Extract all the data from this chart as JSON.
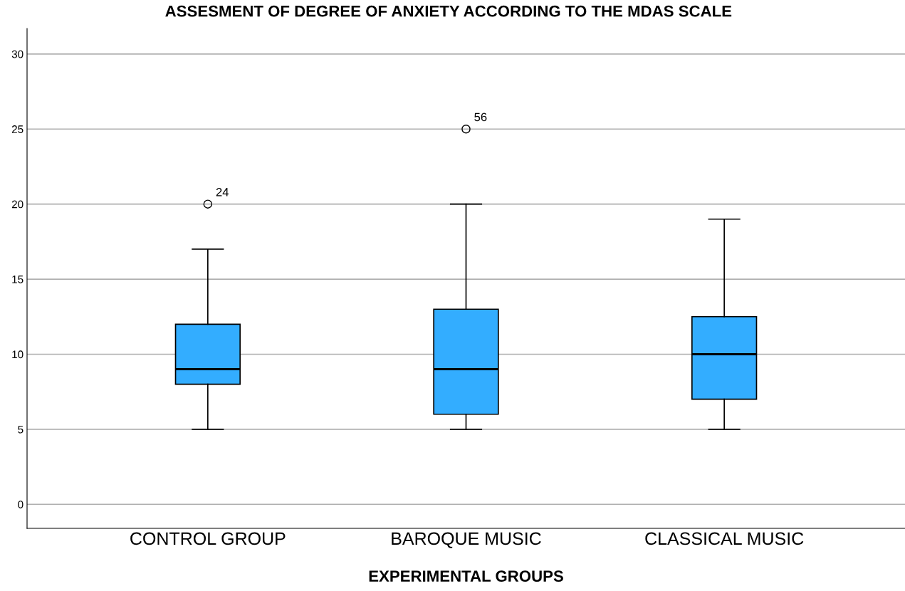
{
  "chart_data": {
    "type": "box",
    "title": "ASSESMENT OF DEGREE OF ANXIETY ACCORDING TO THE MDAS SCALE",
    "xlabel": "EXPERIMENTAL GROUPS",
    "categories": [
      "CONTROL GROUP",
      "BAROQUE MUSIC",
      "CLASSICAL MUSIC"
    ],
    "series": [
      {
        "color": "#33adff",
        "boxes": [
          {
            "low": 5,
            "q1": 8,
            "median": 9,
            "q3": 12,
            "high": 17,
            "outliers": [
              20
            ]
          },
          {
            "low": 5,
            "q1": 6,
            "median": 9,
            "q3": 13,
            "high": 20,
            "outliers": [
              25
            ]
          },
          {
            "low": 5,
            "q1": 7,
            "median": 10,
            "q3": 12.5,
            "high": 19
          }
        ]
      }
    ],
    "ylim": [
      -1.6,
      31.7
    ],
    "yticks": [
      0,
      5,
      10,
      15,
      20,
      25,
      30
    ],
    "grid": "y",
    "annotations": [
      "24",
      "56"
    ]
  }
}
